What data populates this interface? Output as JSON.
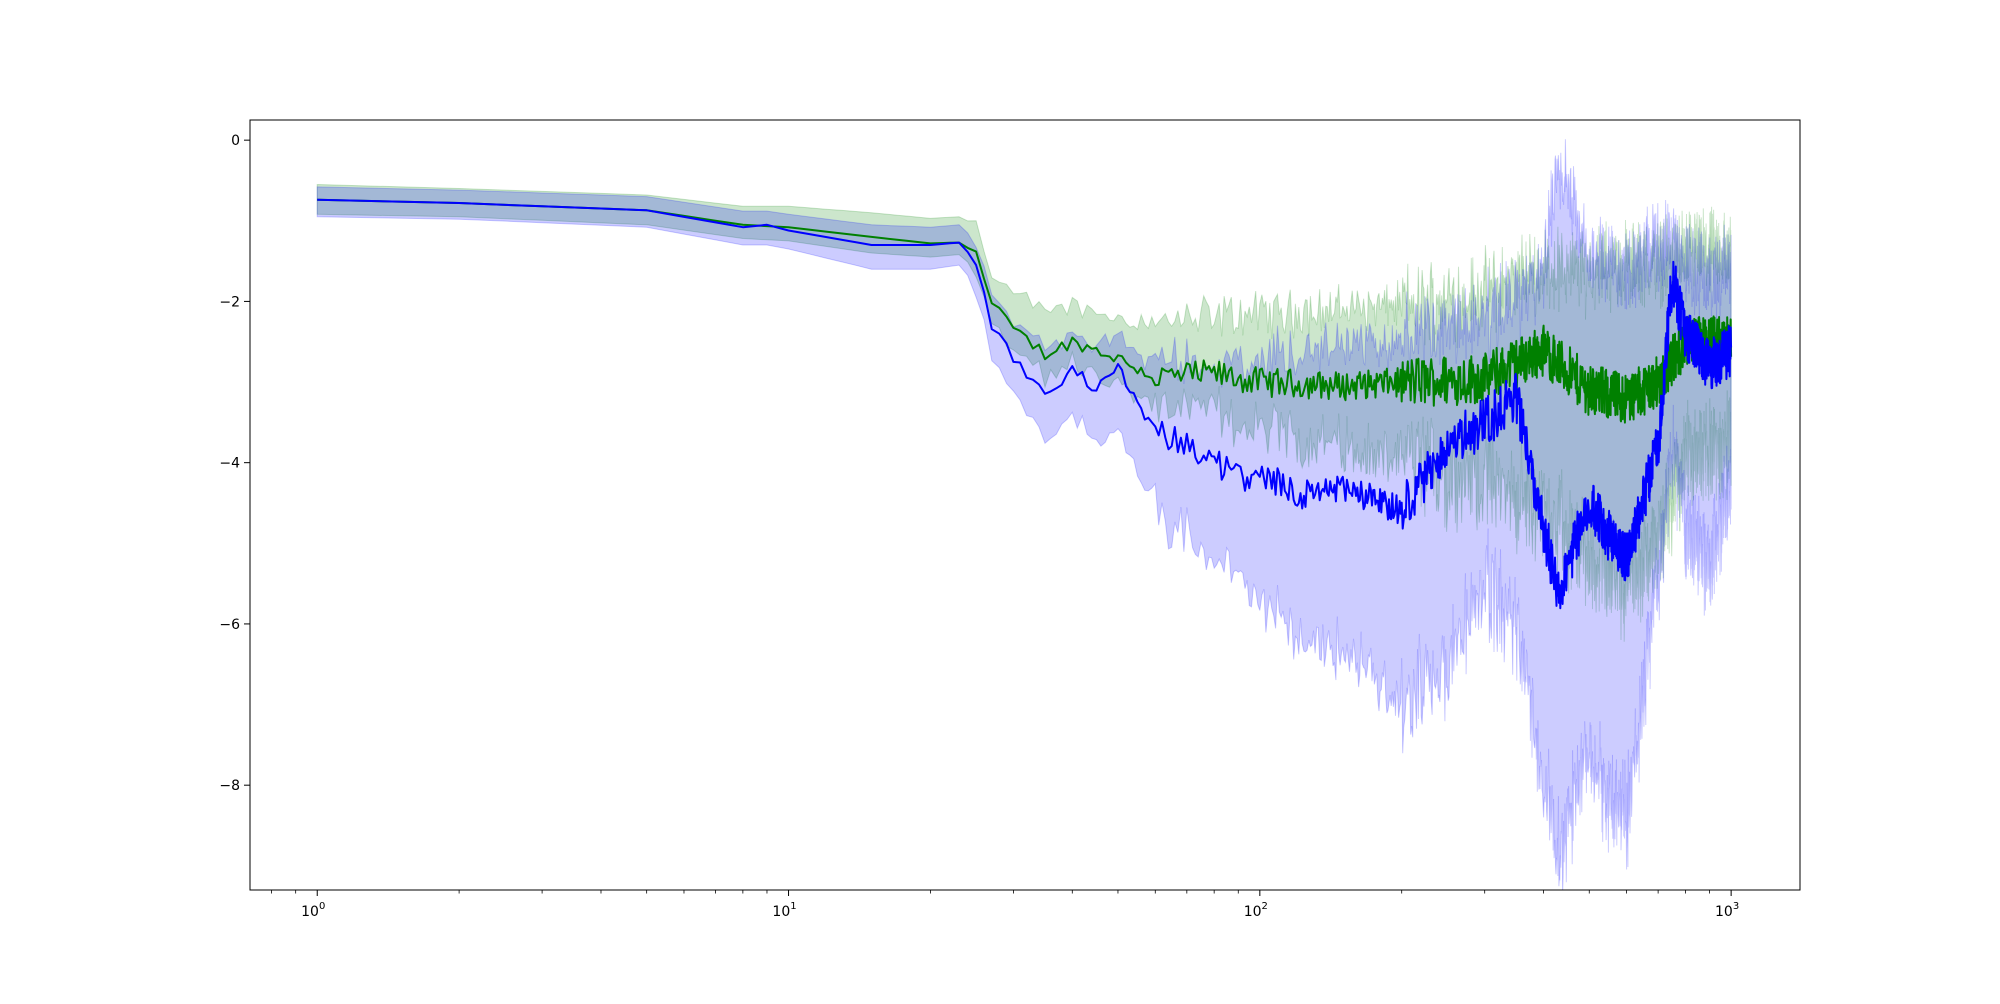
{
  "chart_data": {
    "type": "line",
    "title": "",
    "xlabel": "",
    "ylabel": "",
    "x_scale": "log",
    "xlim": [
      0.72,
      1400
    ],
    "ylim": [
      -9.3,
      0.25
    ],
    "grid": false,
    "legend": "none",
    "x_ticks": [
      {
        "value": 1,
        "base": "10",
        "exp": "0"
      },
      {
        "value": 10,
        "base": "10",
        "exp": "1"
      },
      {
        "value": 100,
        "base": "10",
        "exp": "2"
      },
      {
        "value": 1000,
        "base": "10",
        "exp": "3"
      }
    ],
    "y_ticks": [
      {
        "value": 0,
        "label": "0"
      },
      {
        "value": -2,
        "label": "−2"
      },
      {
        "value": -4,
        "label": "−4"
      },
      {
        "value": -6,
        "label": "−6"
      },
      {
        "value": -8,
        "label": "−8"
      }
    ],
    "series": [
      {
        "color": "#008000",
        "band_color": "#008000",
        "band_opacity": 0.2,
        "x": [
          1,
          2,
          5,
          8,
          10,
          15,
          20,
          23,
          25,
          27,
          30,
          35,
          40,
          50,
          60,
          80,
          100,
          150,
          200,
          300,
          400,
          500,
          600,
          700,
          800,
          1000
        ],
        "y": [
          -0.74,
          -0.78,
          -0.87,
          -1.05,
          -1.08,
          -1.2,
          -1.28,
          -1.27,
          -1.4,
          -2.05,
          -2.35,
          -2.65,
          -2.5,
          -2.7,
          -2.95,
          -2.9,
          -3.0,
          -3.05,
          -3.0,
          -2.95,
          -2.6,
          -3.1,
          -3.2,
          -3.0,
          -2.5,
          -2.5
        ],
        "upper": [
          -0.55,
          -0.6,
          -0.68,
          -0.82,
          -0.82,
          -0.9,
          -0.97,
          -0.95,
          -1.05,
          -1.7,
          -1.95,
          -2.1,
          -2.05,
          -2.2,
          -2.25,
          -2.2,
          -2.15,
          -2.1,
          -2.05,
          -1.9,
          -1.6,
          -1.6,
          -1.55,
          -1.5,
          -1.4,
          -1.4
        ],
        "lower": [
          -0.92,
          -0.95,
          -1.05,
          -1.22,
          -1.25,
          -1.4,
          -1.45,
          -1.42,
          -1.6,
          -2.3,
          -2.6,
          -2.9,
          -2.8,
          -3.05,
          -3.3,
          -3.4,
          -3.6,
          -3.8,
          -4.0,
          -4.2,
          -4.6,
          -5.2,
          -5.5,
          -5.0,
          -4.0,
          -3.8
        ]
      },
      {
        "color": "#0000ff",
        "band_color": "#0000ff",
        "band_opacity": 0.2,
        "x": [
          1,
          2,
          5,
          8,
          9,
          10,
          15,
          20,
          23,
          25,
          27,
          30,
          35,
          40,
          45,
          50,
          55,
          60,
          70,
          80,
          90,
          100,
          120,
          150,
          200,
          250,
          300,
          350,
          400,
          430,
          500,
          550,
          600,
          700,
          750,
          800,
          900,
          1000
        ],
        "y": [
          -0.74,
          -0.78,
          -0.87,
          -1.08,
          -1.05,
          -1.12,
          -1.3,
          -1.3,
          -1.27,
          -1.5,
          -2.3,
          -2.7,
          -3.2,
          -2.85,
          -3.1,
          -2.8,
          -3.3,
          -3.6,
          -3.8,
          -4.0,
          -4.2,
          -4.1,
          -4.4,
          -4.3,
          -4.6,
          -3.8,
          -3.5,
          -3.2,
          -4.8,
          -5.6,
          -4.5,
          -4.9,
          -5.2,
          -3.8,
          -1.7,
          -2.4,
          -2.8,
          -2.6
        ],
        "upper": [
          -0.58,
          -0.62,
          -0.7,
          -0.88,
          -0.88,
          -0.92,
          -1.05,
          -1.08,
          -1.05,
          -1.25,
          -1.95,
          -2.25,
          -2.6,
          -2.4,
          -2.6,
          -2.4,
          -2.7,
          -2.8,
          -2.75,
          -2.8,
          -2.8,
          -2.7,
          -2.6,
          -2.55,
          -2.5,
          -2.3,
          -2.2,
          -2.0,
          -1.6,
          -0.2,
          -1.4,
          -1.5,
          -1.6,
          -1.3,
          -1.2,
          -1.6,
          -1.7,
          -1.5
        ],
        "lower": [
          -0.95,
          -0.98,
          -1.08,
          -1.3,
          -1.3,
          -1.35,
          -1.6,
          -1.6,
          -1.55,
          -1.8,
          -2.7,
          -3.1,
          -3.7,
          -3.4,
          -3.8,
          -3.6,
          -4.1,
          -4.5,
          -4.9,
          -5.2,
          -5.6,
          -5.7,
          -6.2,
          -6.3,
          -7.0,
          -6.5,
          -5.5,
          -6.0,
          -8.0,
          -8.8,
          -7.5,
          -8.2,
          -8.4,
          -5.5,
          -3.8,
          -4.9,
          -5.3,
          -4.2
        ]
      }
    ]
  }
}
